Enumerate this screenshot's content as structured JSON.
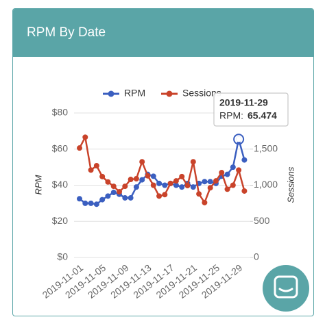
{
  "card": {
    "title": "RPM By Date"
  },
  "chart_data": {
    "type": "line",
    "categories": [
      "2019-11-01",
      null,
      null,
      null,
      "2019-11-05",
      null,
      null,
      null,
      "2019-11-09",
      null,
      null,
      null,
      "2019-11-13",
      null,
      null,
      null,
      "2019-11-17",
      null,
      null,
      null,
      "2019-11-21",
      null,
      null,
      null,
      "2019-11-25",
      null,
      null,
      null,
      "2019-11-29",
      null
    ],
    "series": [
      {
        "name": "RPM",
        "color": "#3b5fc0",
        "values": [
          32.5,
          30,
          30,
          29.5,
          32,
          34,
          36,
          35,
          33,
          33,
          39,
          43,
          46,
          45,
          41,
          40,
          41,
          40,
          39,
          41,
          39,
          41,
          42,
          42,
          41,
          45,
          46,
          50,
          65.474,
          54
        ]
      },
      {
        "name": "Sessions",
        "color": "#c9432a",
        "axis": "y2",
        "values": [
          1515,
          1665,
          1210,
          1270,
          1120,
          1045,
          985,
          910,
          985,
          1080,
          1090,
          1325,
          1130,
          1000,
          850,
          870,
          1025,
          1060,
          1120,
          995,
          1325,
          880,
          760,
          965,
          1060,
          1175,
          945,
          1000,
          1210,
          920
        ]
      }
    ],
    "ylabel": "RPM",
    "y2label": "Sessions",
    "ylim": [
      0,
      80
    ],
    "yticks": [
      {
        "value": 0,
        "label": "$0"
      },
      {
        "value": 20,
        "label": "$20"
      },
      {
        "value": 40,
        "label": "$40"
      },
      {
        "value": 60,
        "label": "$60"
      },
      {
        "value": 80,
        "label": "$80"
      }
    ],
    "y2lim": [
      0,
      2000
    ],
    "y2ticks": [
      0,
      500,
      {
        "value": 1000,
        "label": "1,000"
      },
      {
        "value": 1500,
        "label": "1,500"
      }
    ],
    "grid": true,
    "tooltip": {
      "title": "2019-11-29",
      "label": "RPM:",
      "value": "65.474",
      "index": 28
    }
  }
}
